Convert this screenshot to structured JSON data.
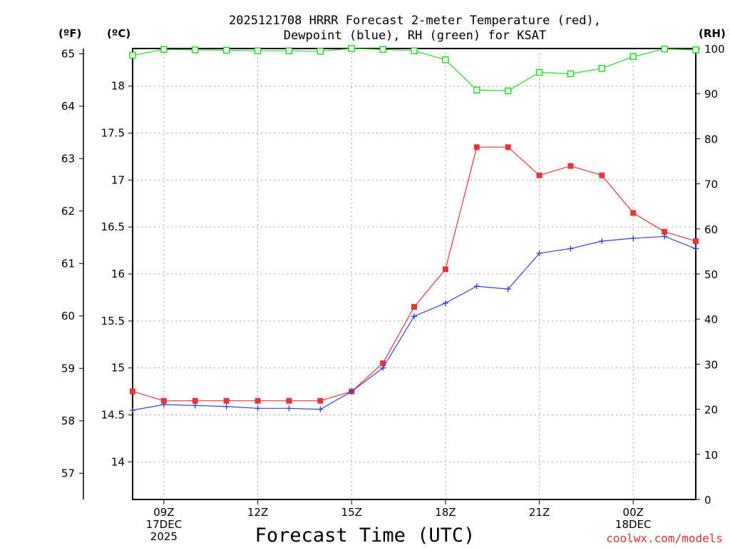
{
  "chart_data": {
    "type": "line",
    "title_lines": [
      "2025121708 HRRR Forecast 2-meter Temperature (red),",
      "Dewpoint (blue), RH (green) for KSAT"
    ],
    "xlabel": "Forecast Time (UTC)",
    "credit": "coolwx.com/models",
    "units": {
      "f": "(ºF)",
      "c": "(ºC)",
      "rh": "(RH)"
    },
    "x": [
      8,
      9,
      10,
      11,
      12,
      13,
      14,
      15,
      16,
      17,
      18,
      19,
      20,
      21,
      22,
      23,
      24,
      25,
      26
    ],
    "xlim": [
      8,
      26
    ],
    "x_ticks": [
      {
        "x": 9,
        "lines": [
          "09Z",
          "17DEC",
          "2025"
        ]
      },
      {
        "x": 12,
        "lines": [
          "12Z"
        ]
      },
      {
        "x": 15,
        "lines": [
          "15Z"
        ]
      },
      {
        "x": 18,
        "lines": [
          "18Z"
        ]
      },
      {
        "x": 21,
        "lines": [
          "21Z"
        ]
      },
      {
        "x": 24,
        "lines": [
          "00Z",
          "18DEC"
        ]
      }
    ],
    "celsius_axis": {
      "ylim": [
        13.6,
        18.4
      ],
      "ticks": [
        "14",
        "14.5",
        "15",
        "15.5",
        "16",
        "16.5",
        "17",
        "17.5",
        "18"
      ]
    },
    "fahrenheit_axis": {
      "ylim": [
        56.5,
        65.1
      ],
      "ticks": [
        "57",
        "58",
        "59",
        "60",
        "61",
        "62",
        "63",
        "64",
        "65"
      ]
    },
    "rh_axis": {
      "ylim": [
        0,
        100
      ],
      "ticks": [
        "0",
        "10",
        "20",
        "30",
        "40",
        "50",
        "60",
        "70",
        "80",
        "90",
        "100"
      ]
    },
    "series": [
      {
        "name": "Temperature",
        "axis": "celsius",
        "color": "#e8343a",
        "marker": "filled-square",
        "values": [
          14.75,
          14.65,
          14.65,
          14.65,
          14.65,
          14.65,
          14.65,
          14.75,
          15.05,
          15.65,
          16.05,
          17.35,
          17.35,
          17.05,
          17.15,
          17.05,
          16.65,
          16.45,
          16.35
        ]
      },
      {
        "name": "Dewpoint",
        "axis": "celsius",
        "color": "#3344dd",
        "marker": "plus",
        "values": [
          14.55,
          14.61,
          14.6,
          14.59,
          14.57,
          14.57,
          14.56,
          14.75,
          15.0,
          15.55,
          15.69,
          15.87,
          15.84,
          16.22,
          16.27,
          16.35,
          16.38,
          16.4,
          16.27
        ]
      },
      {
        "name": "RH",
        "axis": "rh",
        "color": "#22dd22",
        "marker": "open-square",
        "values": [
          98.5,
          99.8,
          99.7,
          99.6,
          99.5,
          99.5,
          99.4,
          100,
          99.8,
          99.5,
          97.5,
          90.8,
          90.6,
          94.7,
          94.4,
          95.6,
          98.2,
          99.9,
          99.7
        ]
      }
    ]
  }
}
